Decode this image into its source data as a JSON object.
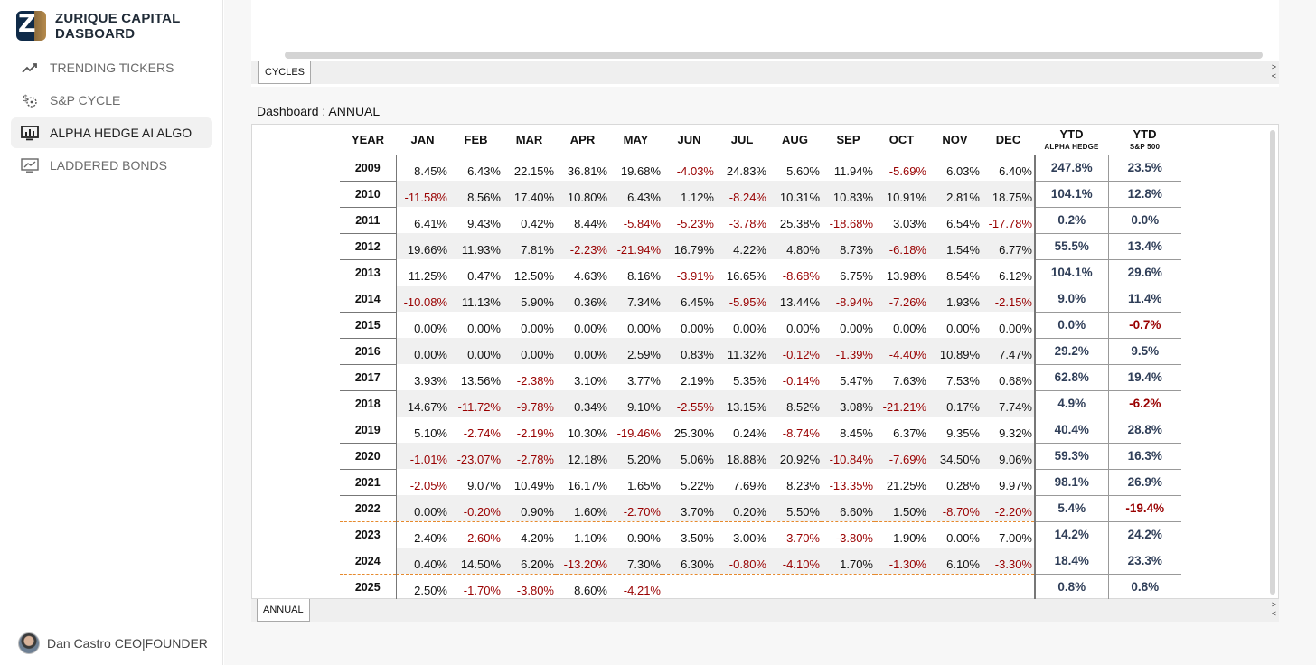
{
  "brand": {
    "line1": "ZURIQUE CAPITAL",
    "line2": "DASBOARD",
    "logo_letter": "Z"
  },
  "nav": [
    {
      "label": "TRENDING TICKERS",
      "icon": "trending-up-icon",
      "active": false
    },
    {
      "label": "S&P CYCLE",
      "icon": "dollar-cycle-icon",
      "active": false
    },
    {
      "label": "ALPHA HEDGE AI ALGO",
      "icon": "monitor-chart-icon",
      "active": true
    },
    {
      "label": "LADDERED BONDS",
      "icon": "monitor-line-icon",
      "active": false
    }
  ],
  "user": {
    "name": "Dan Castro CEO|FOUNDER"
  },
  "top_tab": {
    "label": "CYCLES"
  },
  "bottom_tab": {
    "label": "ANNUAL"
  },
  "arrows": {
    "right": ">",
    "left": "<"
  },
  "dashboard_title": "Dashboard : ANNUAL",
  "colors": {
    "negative": "#990000",
    "ytd": "#2f3e58",
    "orange_divider": "#e68a2e"
  },
  "table": {
    "headers": [
      "YEAR",
      "JAN",
      "FEB",
      "MAR",
      "APR",
      "MAY",
      "JUN",
      "JUL",
      "AUG",
      "SEP",
      "OCT",
      "NOV",
      "DEC"
    ],
    "ytd_headers": [
      {
        "title": "YTD",
        "sub": "ALPHA HEDGE"
      },
      {
        "title": "YTD",
        "sub": "S&P 500"
      }
    ],
    "rows": [
      {
        "year": "2009",
        "months": [
          "8.45%",
          "6.43%",
          "22.15%",
          "36.81%",
          "19.68%",
          "-4.03%",
          "24.83%",
          "5.60%",
          "11.94%",
          "-5.69%",
          "6.03%",
          "6.40%"
        ],
        "ytd_alpha": "247.8%",
        "ytd_sp": "23.5%"
      },
      {
        "year": "2010",
        "months": [
          "-11.58%",
          "8.56%",
          "17.40%",
          "10.80%",
          "6.43%",
          "1.12%",
          "-8.24%",
          "10.31%",
          "10.83%",
          "10.91%",
          "2.81%",
          "18.75%"
        ],
        "ytd_alpha": "104.1%",
        "ytd_sp": "12.8%"
      },
      {
        "year": "2011",
        "months": [
          "6.41%",
          "9.43%",
          "0.42%",
          "8.44%",
          "-5.84%",
          "-5.23%",
          "-3.78%",
          "25.38%",
          "-18.68%",
          "3.03%",
          "6.54%",
          "-17.78%"
        ],
        "ytd_alpha": "0.2%",
        "ytd_sp": "0.0%"
      },
      {
        "year": "2012",
        "months": [
          "19.66%",
          "11.93%",
          "7.81%",
          "-2.23%",
          "-21.94%",
          "16.79%",
          "4.22%",
          "4.80%",
          "8.73%",
          "-6.18%",
          "1.54%",
          "6.77%"
        ],
        "ytd_alpha": "55.5%",
        "ytd_sp": "13.4%"
      },
      {
        "year": "2013",
        "months": [
          "11.25%",
          "0.47%",
          "12.50%",
          "4.63%",
          "8.16%",
          "-3.91%",
          "16.65%",
          "-8.68%",
          "6.75%",
          "13.98%",
          "8.54%",
          "6.12%"
        ],
        "ytd_alpha": "104.1%",
        "ytd_sp": "29.6%"
      },
      {
        "year": "2014",
        "months": [
          "-10.08%",
          "11.13%",
          "5.90%",
          "0.36%",
          "7.34%",
          "6.45%",
          "-5.95%",
          "13.44%",
          "-8.94%",
          "-7.26%",
          "1.93%",
          "-2.15%"
        ],
        "ytd_alpha": "9.0%",
        "ytd_sp": "11.4%"
      },
      {
        "year": "2015",
        "months": [
          "0.00%",
          "0.00%",
          "0.00%",
          "0.00%",
          "0.00%",
          "0.00%",
          "0.00%",
          "0.00%",
          "0.00%",
          "0.00%",
          "0.00%",
          "0.00%"
        ],
        "ytd_alpha": "0.0%",
        "ytd_sp": "-0.7%"
      },
      {
        "year": "2016",
        "months": [
          "0.00%",
          "0.00%",
          "0.00%",
          "0.00%",
          "2.59%",
          "0.83%",
          "11.32%",
          "-0.12%",
          "-1.39%",
          "-4.40%",
          "10.89%",
          "7.47%"
        ],
        "ytd_alpha": "29.2%",
        "ytd_sp": "9.5%"
      },
      {
        "year": "2017",
        "months": [
          "3.93%",
          "13.56%",
          "-2.38%",
          "3.10%",
          "3.77%",
          "2.19%",
          "5.35%",
          "-0.14%",
          "5.47%",
          "7.63%",
          "7.53%",
          "0.68%"
        ],
        "ytd_alpha": "62.8%",
        "ytd_sp": "19.4%"
      },
      {
        "year": "2018",
        "months": [
          "14.67%",
          "-11.72%",
          "-9.78%",
          "0.34%",
          "9.10%",
          "-2.55%",
          "13.15%",
          "8.52%",
          "3.08%",
          "-21.21%",
          "0.17%",
          "7.74%"
        ],
        "ytd_alpha": "4.9%",
        "ytd_sp": "-6.2%"
      },
      {
        "year": "2019",
        "months": [
          "5.10%",
          "-2.74%",
          "-2.19%",
          "10.30%",
          "-19.46%",
          "25.30%",
          "0.24%",
          "-8.74%",
          "8.45%",
          "6.37%",
          "9.35%",
          "9.32%"
        ],
        "ytd_alpha": "40.4%",
        "ytd_sp": "28.8%"
      },
      {
        "year": "2020",
        "months": [
          "-1.01%",
          "-23.07%",
          "-2.78%",
          "12.18%",
          "5.20%",
          "5.06%",
          "18.88%",
          "20.92%",
          "-10.84%",
          "-7.69%",
          "34.50%",
          "9.06%"
        ],
        "ytd_alpha": "59.3%",
        "ytd_sp": "16.3%"
      },
      {
        "year": "2021",
        "months": [
          "-2.05%",
          "9.07%",
          "10.49%",
          "16.17%",
          "1.65%",
          "5.22%",
          "7.69%",
          "8.23%",
          "-13.35%",
          "21.25%",
          "0.28%",
          "9.97%"
        ],
        "ytd_alpha": "98.1%",
        "ytd_sp": "26.9%"
      },
      {
        "year": "2022",
        "months": [
          "0.00%",
          "-0.20%",
          "0.90%",
          "1.60%",
          "-2.70%",
          "3.70%",
          "0.20%",
          "5.50%",
          "6.60%",
          "1.50%",
          "-8.70%",
          "-2.20%"
        ],
        "ytd_alpha": "5.4%",
        "ytd_sp": "-19.4%"
      },
      {
        "year": "2023",
        "months": [
          "2.40%",
          "-2.60%",
          "4.20%",
          "1.10%",
          "0.90%",
          "3.50%",
          "3.00%",
          "-3.70%",
          "-3.80%",
          "1.90%",
          "0.00%",
          "7.00%"
        ],
        "ytd_alpha": "14.2%",
        "ytd_sp": "24.2%"
      },
      {
        "year": "2024",
        "months": [
          "0.40%",
          "14.50%",
          "6.20%",
          "-13.20%",
          "7.30%",
          "6.30%",
          "-0.80%",
          "-4.10%",
          "1.70%",
          "-1.30%",
          "6.10%",
          "-3.30%"
        ],
        "ytd_alpha": "18.4%",
        "ytd_sp": "23.3%"
      },
      {
        "year": "2025",
        "months": [
          "2.50%",
          "-1.70%",
          "-3.80%",
          "8.60%",
          "-4.21%",
          "",
          "",
          "",
          "",
          "",
          "",
          ""
        ],
        "ytd_alpha": "0.8%",
        "ytd_sp": "0.8%"
      }
    ]
  }
}
